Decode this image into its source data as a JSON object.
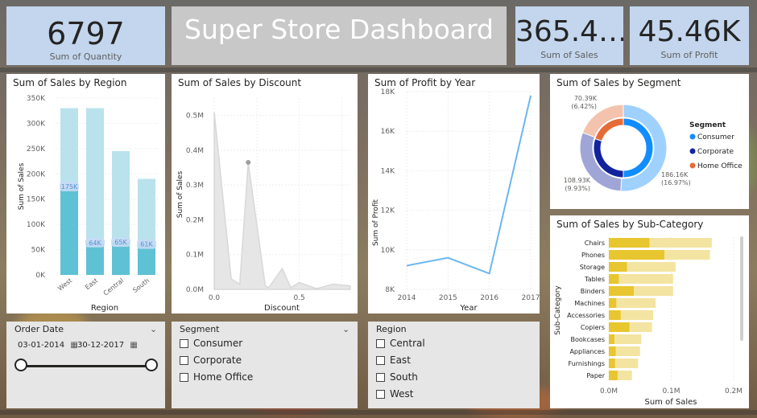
{
  "kpis": {
    "quantity": {
      "value": "6797",
      "label": "Sum of Quantity"
    },
    "sales": {
      "value": "365.4…",
      "label": "Sum of Sales"
    },
    "profit": {
      "value": "45.46K",
      "label": "Sum of Profit"
    }
  },
  "dashboard_title": "Super Store Dashboard",
  "chart_data": [
    {
      "type": "bar",
      "title": "Sum of Sales by Region",
      "xlabel": "Region",
      "ylabel": "Sum of Sales",
      "categories": [
        "West",
        "East",
        "Central",
        "South"
      ],
      "series": [
        {
          "values": [
            330000,
            330000,
            245000,
            190000
          ],
          "color": "#b9e2ec"
        },
        {
          "values": [
            175000,
            64000,
            65000,
            61000
          ],
          "color": "#5fc1d4"
        }
      ],
      "data_labels": [
        "175K",
        "64K",
        "65K",
        "61K"
      ],
      "yticks": [
        "350K",
        "300K",
        "250K",
        "200K",
        "150K",
        "100K",
        "50K",
        "0K"
      ],
      "ylim": [
        0,
        350000
      ]
    },
    {
      "type": "area",
      "title": "Sum of Sales by Discount",
      "xlabel": "Discount",
      "ylabel": "Sum of Sales",
      "x": [
        0.0,
        0.1,
        0.15,
        0.2,
        0.3,
        0.32,
        0.4,
        0.45,
        0.5,
        0.6,
        0.7,
        0.8
      ],
      "y": [
        510000,
        30000,
        15000,
        365000,
        10000,
        5000,
        60000,
        5000,
        20000,
        2000,
        15000,
        10000
      ],
      "highlight_point": [
        0.2,
        365000
      ],
      "xticks": [
        "0.0",
        "0.5"
      ],
      "yticks": [
        "0.5M",
        "0.4M",
        "0.3M",
        "0.2M",
        "0.1M",
        "0.0M"
      ],
      "xlim": [
        0,
        0.8
      ],
      "ylim": [
        0,
        550000
      ]
    },
    {
      "type": "line",
      "title": "Sum of Profit by Year",
      "xlabel": "Year",
      "ylabel": "Sum of Profit",
      "x": [
        2014,
        2015,
        2016,
        2017
      ],
      "y": [
        9200,
        9600,
        8800,
        17800
      ],
      "xticks": [
        "2014",
        "2015",
        "2016",
        "2017"
      ],
      "yticks": [
        "18K",
        "16K",
        "14K",
        "12K",
        "10K",
        "8K"
      ],
      "ylim": [
        8000,
        18000
      ]
    },
    {
      "type": "pie",
      "title": "Sum of Sales by Segment",
      "legend_title": "Segment",
      "slices": [
        {
          "name": "Consumer",
          "outer": 186160,
          "inner": 50,
          "color": "#118dff"
        },
        {
          "name": "Corporate",
          "outer": 108930,
          "inner": 30,
          "color": "#12239e"
        },
        {
          "name": "Home Office",
          "outer": 70390,
          "inner": 20,
          "color": "#e66c37"
        }
      ],
      "labels": [
        {
          "text": "186.16K",
          "pct": "(16.97%)"
        },
        {
          "text": "108.93K",
          "pct": "(9.93%)"
        },
        {
          "text": "70.39K",
          "pct": "(6.42%)"
        }
      ]
    },
    {
      "type": "bar",
      "title": "Sum of Sales by Sub-Category",
      "xlabel": "Sum of Sales",
      "ylabel": "Sub-Category",
      "categories": [
        "Chairs",
        "Phones",
        "Storage",
        "Tables",
        "Binders",
        "Machines",
        "Accessories",
        "Copiers",
        "Bookcases",
        "Appliances",
        "Furnishings",
        "Paper"
      ],
      "series": [
        {
          "values": [
            165000,
            162000,
            107000,
            103000,
            103000,
            75000,
            71000,
            69000,
            52000,
            50000,
            47000,
            37000
          ],
          "color": "#f3e4a1"
        },
        {
          "values": [
            65000,
            89000,
            29000,
            16000,
            40000,
            12000,
            19000,
            33000,
            9000,
            11000,
            10000,
            14000
          ],
          "color": "#e8c62f"
        }
      ],
      "xticks": [
        "0.0M",
        "0.1M",
        "0.2M"
      ],
      "xlim": [
        0,
        200000
      ]
    }
  ],
  "slicers": {
    "date": {
      "title": "Order Date",
      "start": "03-01-2014",
      "end": "30-12-2017"
    },
    "segment": {
      "title": "Segment",
      "options": [
        "Consumer",
        "Corporate",
        "Home Office"
      ]
    },
    "region": {
      "title": "Region",
      "options": [
        "Central",
        "East",
        "South",
        "West"
      ]
    }
  }
}
